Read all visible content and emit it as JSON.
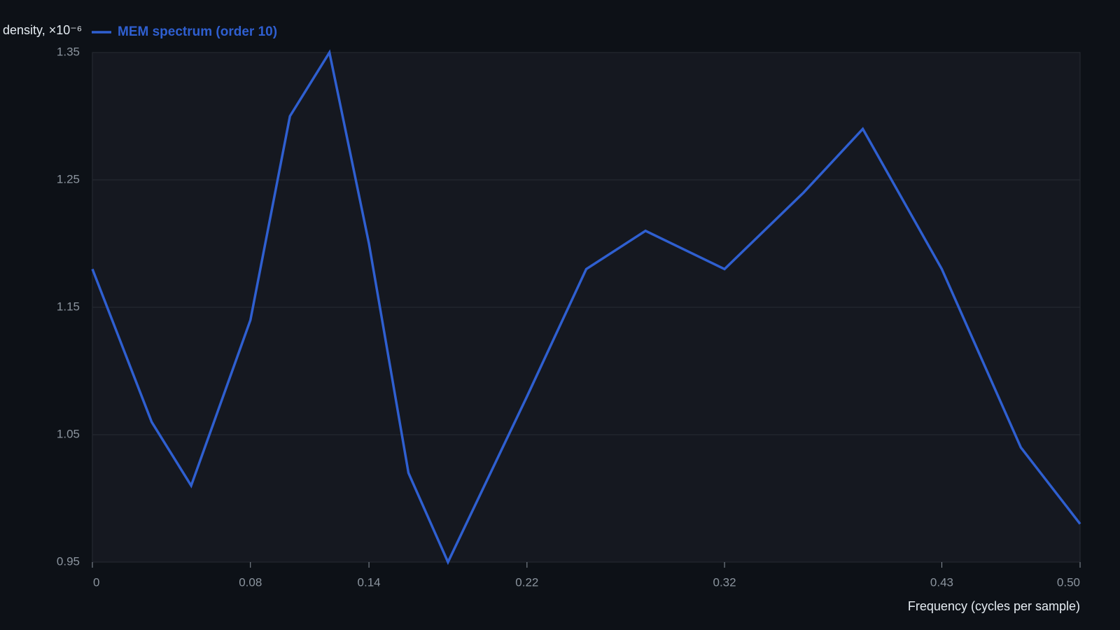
{
  "chart_data": {
    "type": "line",
    "y_label": "density, ×10⁻⁶",
    "x_label": "Frequency (cycles per sample)",
    "x": [
      0,
      0.03,
      0.05,
      0.08,
      0.1,
      0.12,
      0.14,
      0.16,
      0.18,
      0.22,
      0.25,
      0.28,
      0.32,
      0.36,
      0.39,
      0.43,
      0.47,
      0.5
    ],
    "series": [
      {
        "name": "MEM spectrum (order 10)",
        "color": "#2f5fd0",
        "values": [
          1.18,
          1.06,
          1.01,
          1.14,
          1.3,
          1.35,
          1.2,
          1.02,
          0.95,
          1.08,
          1.18,
          1.21,
          1.18,
          1.24,
          1.29,
          1.18,
          1.04,
          0.98
        ]
      }
    ],
    "xlim": [
      0,
      0.5
    ],
    "xticks": [
      0,
      0.08,
      0.14,
      0.22,
      0.32,
      0.43,
      {
        "value": 0.5,
        "label": "0.50"
      }
    ],
    "ylim": [
      0.95,
      1.35
    ],
    "yticks": [
      0.95,
      1.05,
      1.15,
      1.25,
      1.35
    ],
    "grid": true
  }
}
